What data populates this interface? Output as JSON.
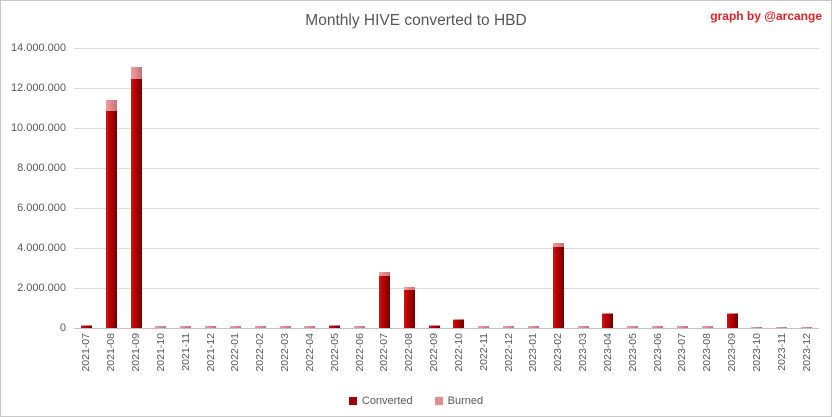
{
  "header": {
    "title": "Monthly HIVE converted to HBD",
    "credit": "graph by @arcange"
  },
  "colors": {
    "converted": "#c00000",
    "converted_legend": "#a00000",
    "burned": "#e48b8f",
    "credit_text": "#e02227",
    "axis_text": "#595959",
    "gridline": "#dcdcdc"
  },
  "chart_data": {
    "type": "bar",
    "stacked": true,
    "title": "Monthly HIVE converted to HBD",
    "xlabel": "",
    "ylabel": "",
    "ylim": [
      0,
      14000000
    ],
    "ytick_step": 2000000,
    "ytick_labels": [
      "0",
      "2.000.000",
      "4.000.000",
      "6.000.000",
      "8.000.000",
      "10.000.000",
      "12.000.000",
      "14.000.000"
    ],
    "grid": true,
    "legend_position": "bottom",
    "categories": [
      "2021-07",
      "2021-08",
      "2021-09",
      "2021-10",
      "2021-11",
      "2021-12",
      "2022-01",
      "2022-02",
      "2022-03",
      "2022-04",
      "2022-05",
      "2022-06",
      "2022-07",
      "2022-08",
      "2022-09",
      "2022-10",
      "2022-11",
      "2022-12",
      "2023-01",
      "2023-02",
      "2023-03",
      "2023-04",
      "2023-05",
      "2023-06",
      "2023-07",
      "2023-08",
      "2023-09",
      "2023-10",
      "2023-11",
      "2023-12"
    ],
    "series": [
      {
        "name": "Converted",
        "color": "#a00000",
        "values": [
          90000,
          10850000,
          12450000,
          10000,
          10000,
          10000,
          10000,
          10000,
          10000,
          10000,
          120000,
          15000,
          2600000,
          1900000,
          130000,
          420000,
          10000,
          10000,
          10000,
          4050000,
          10000,
          700000,
          10000,
          10000,
          10000,
          10000,
          680000,
          10000,
          10000,
          10000
        ]
      },
      {
        "name": "Burned",
        "color": "#e48b8f",
        "values": [
          40000,
          550000,
          600000,
          80000,
          80000,
          80000,
          80000,
          80000,
          80000,
          80000,
          30000,
          70000,
          200000,
          150000,
          40000,
          40000,
          80000,
          80000,
          70000,
          200000,
          80000,
          50000,
          70000,
          70000,
          70000,
          70000,
          60000,
          60000,
          60000,
          60000
        ]
      }
    ]
  }
}
